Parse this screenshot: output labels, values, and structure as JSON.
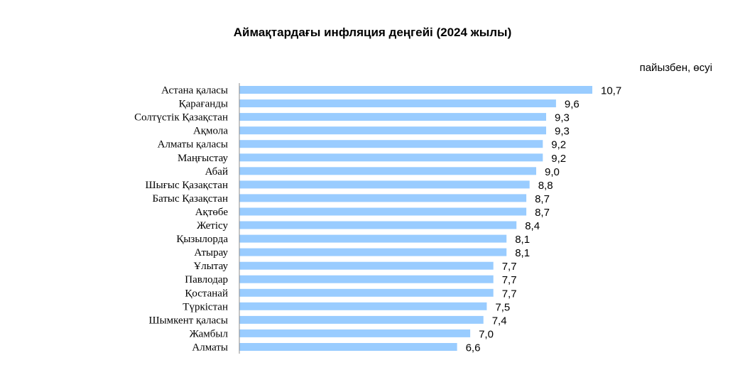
{
  "chart_data": {
    "type": "bar",
    "orientation": "horizontal",
    "title": "Аймақтардағы инфляция деңгейі (2024 жылы)",
    "unit_label": "пайызбен, өсуі",
    "xlim": [
      0,
      10.7
    ],
    "grid": false,
    "legend": "none",
    "bar_color": "#99CCFF",
    "categories": [
      "Астана қаласы",
      "Қарағанды",
      "Солтүстік Қазақстан",
      "Ақмола",
      "Алматы қаласы",
      "Маңғыстау",
      "Абай",
      "Шығыс Қазақстан",
      "Батыс Қазақстан",
      "Ақтөбе",
      "Жетісу",
      "Қызылорда",
      "Атырау",
      "Ұлытау",
      "Павлодар",
      "Қостанай",
      "Түркістан",
      "Шымкент қаласы",
      "Жамбыл",
      "Алматы"
    ],
    "values": [
      10.7,
      9.6,
      9.3,
      9.3,
      9.2,
      9.2,
      9.0,
      8.8,
      8.7,
      8.7,
      8.4,
      8.1,
      8.1,
      7.7,
      7.7,
      7.7,
      7.5,
      7.4,
      7.0,
      6.6
    ],
    "value_labels": [
      "10,7",
      "9,6",
      "9,3",
      "9,3",
      "9,2",
      "9,2",
      "9,0",
      "8,8",
      "8,7",
      "8,7",
      "8,4",
      "8,1",
      "8,1",
      "7,7",
      "7,7",
      "7,7",
      "7,5",
      "7,4",
      "7,0",
      "6,6"
    ]
  }
}
